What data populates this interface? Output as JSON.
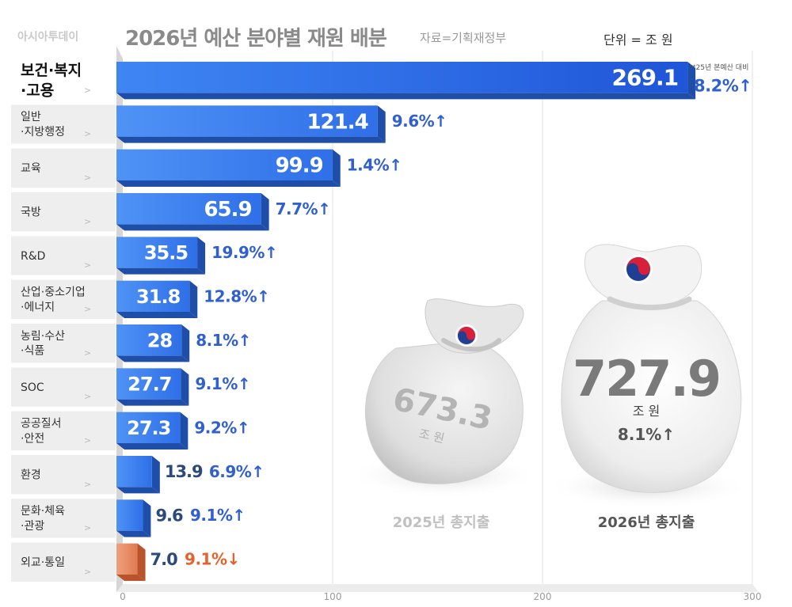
{
  "header": {
    "brand": "아시아투데이",
    "title": "2026년 예산 분야별 재원 배분",
    "source": "자료=기획재정부",
    "unit": "단위 = 조 원"
  },
  "chart_data": {
    "type": "bar",
    "orientation": "horizontal",
    "title": "2026년 예산 분야별 재원 배분",
    "unit": "조 원",
    "xlim": [
      0,
      300
    ],
    "xticks": [
      0,
      100,
      200,
      300
    ],
    "grid": true,
    "categories": [
      [
        "보건·복지",
        "·고용"
      ],
      [
        "일반",
        "·지방행정"
      ],
      [
        "교육"
      ],
      [
        "국방"
      ],
      [
        "R&D"
      ],
      [
        "산업·중소기업",
        "·에너지"
      ],
      [
        "농림·수산",
        "·식품"
      ],
      [
        "SOC"
      ],
      [
        "공공질서",
        "·안전"
      ],
      [
        "환경"
      ],
      [
        "문화·체육",
        "·관광"
      ],
      [
        "외교·통일"
      ]
    ],
    "values": [
      269.1,
      121.4,
      99.9,
      65.9,
      35.5,
      31.8,
      28,
      27.7,
      27.3,
      13.9,
      9.6,
      7.0
    ],
    "value_labels": [
      "269.1",
      "121.4",
      "99.9",
      "65.9",
      "35.5",
      "31.8",
      "28",
      "27.7",
      "27.3",
      "13.9",
      "9.6",
      "7.0"
    ],
    "changes": [
      "8.2%↑",
      "9.6%↑",
      "1.4%↑",
      "7.7%↑",
      "19.9%↑",
      "12.8%↑",
      "8.1%↑",
      "9.1%↑",
      "9.2%↑",
      "6.9%↑",
      "9.1%↑",
      "9.1%↓"
    ],
    "change_note": "*25년 본예산 대비",
    "colors": {
      "bar": "#3d7ef0",
      "bar_dark": "#1f4ea8",
      "bar_highlight": "#2f64de",
      "decrease": "#e8845e",
      "decrease_text": "#e4622d",
      "change_text": "#2f5fd0"
    },
    "totals": [
      {
        "value": "673.3",
        "unit": "조 원",
        "label": "2025년 총지출"
      },
      {
        "value": "727.9",
        "unit": "조 원",
        "change": "8.1%↑",
        "label": "2026년 총지출"
      }
    ]
  }
}
